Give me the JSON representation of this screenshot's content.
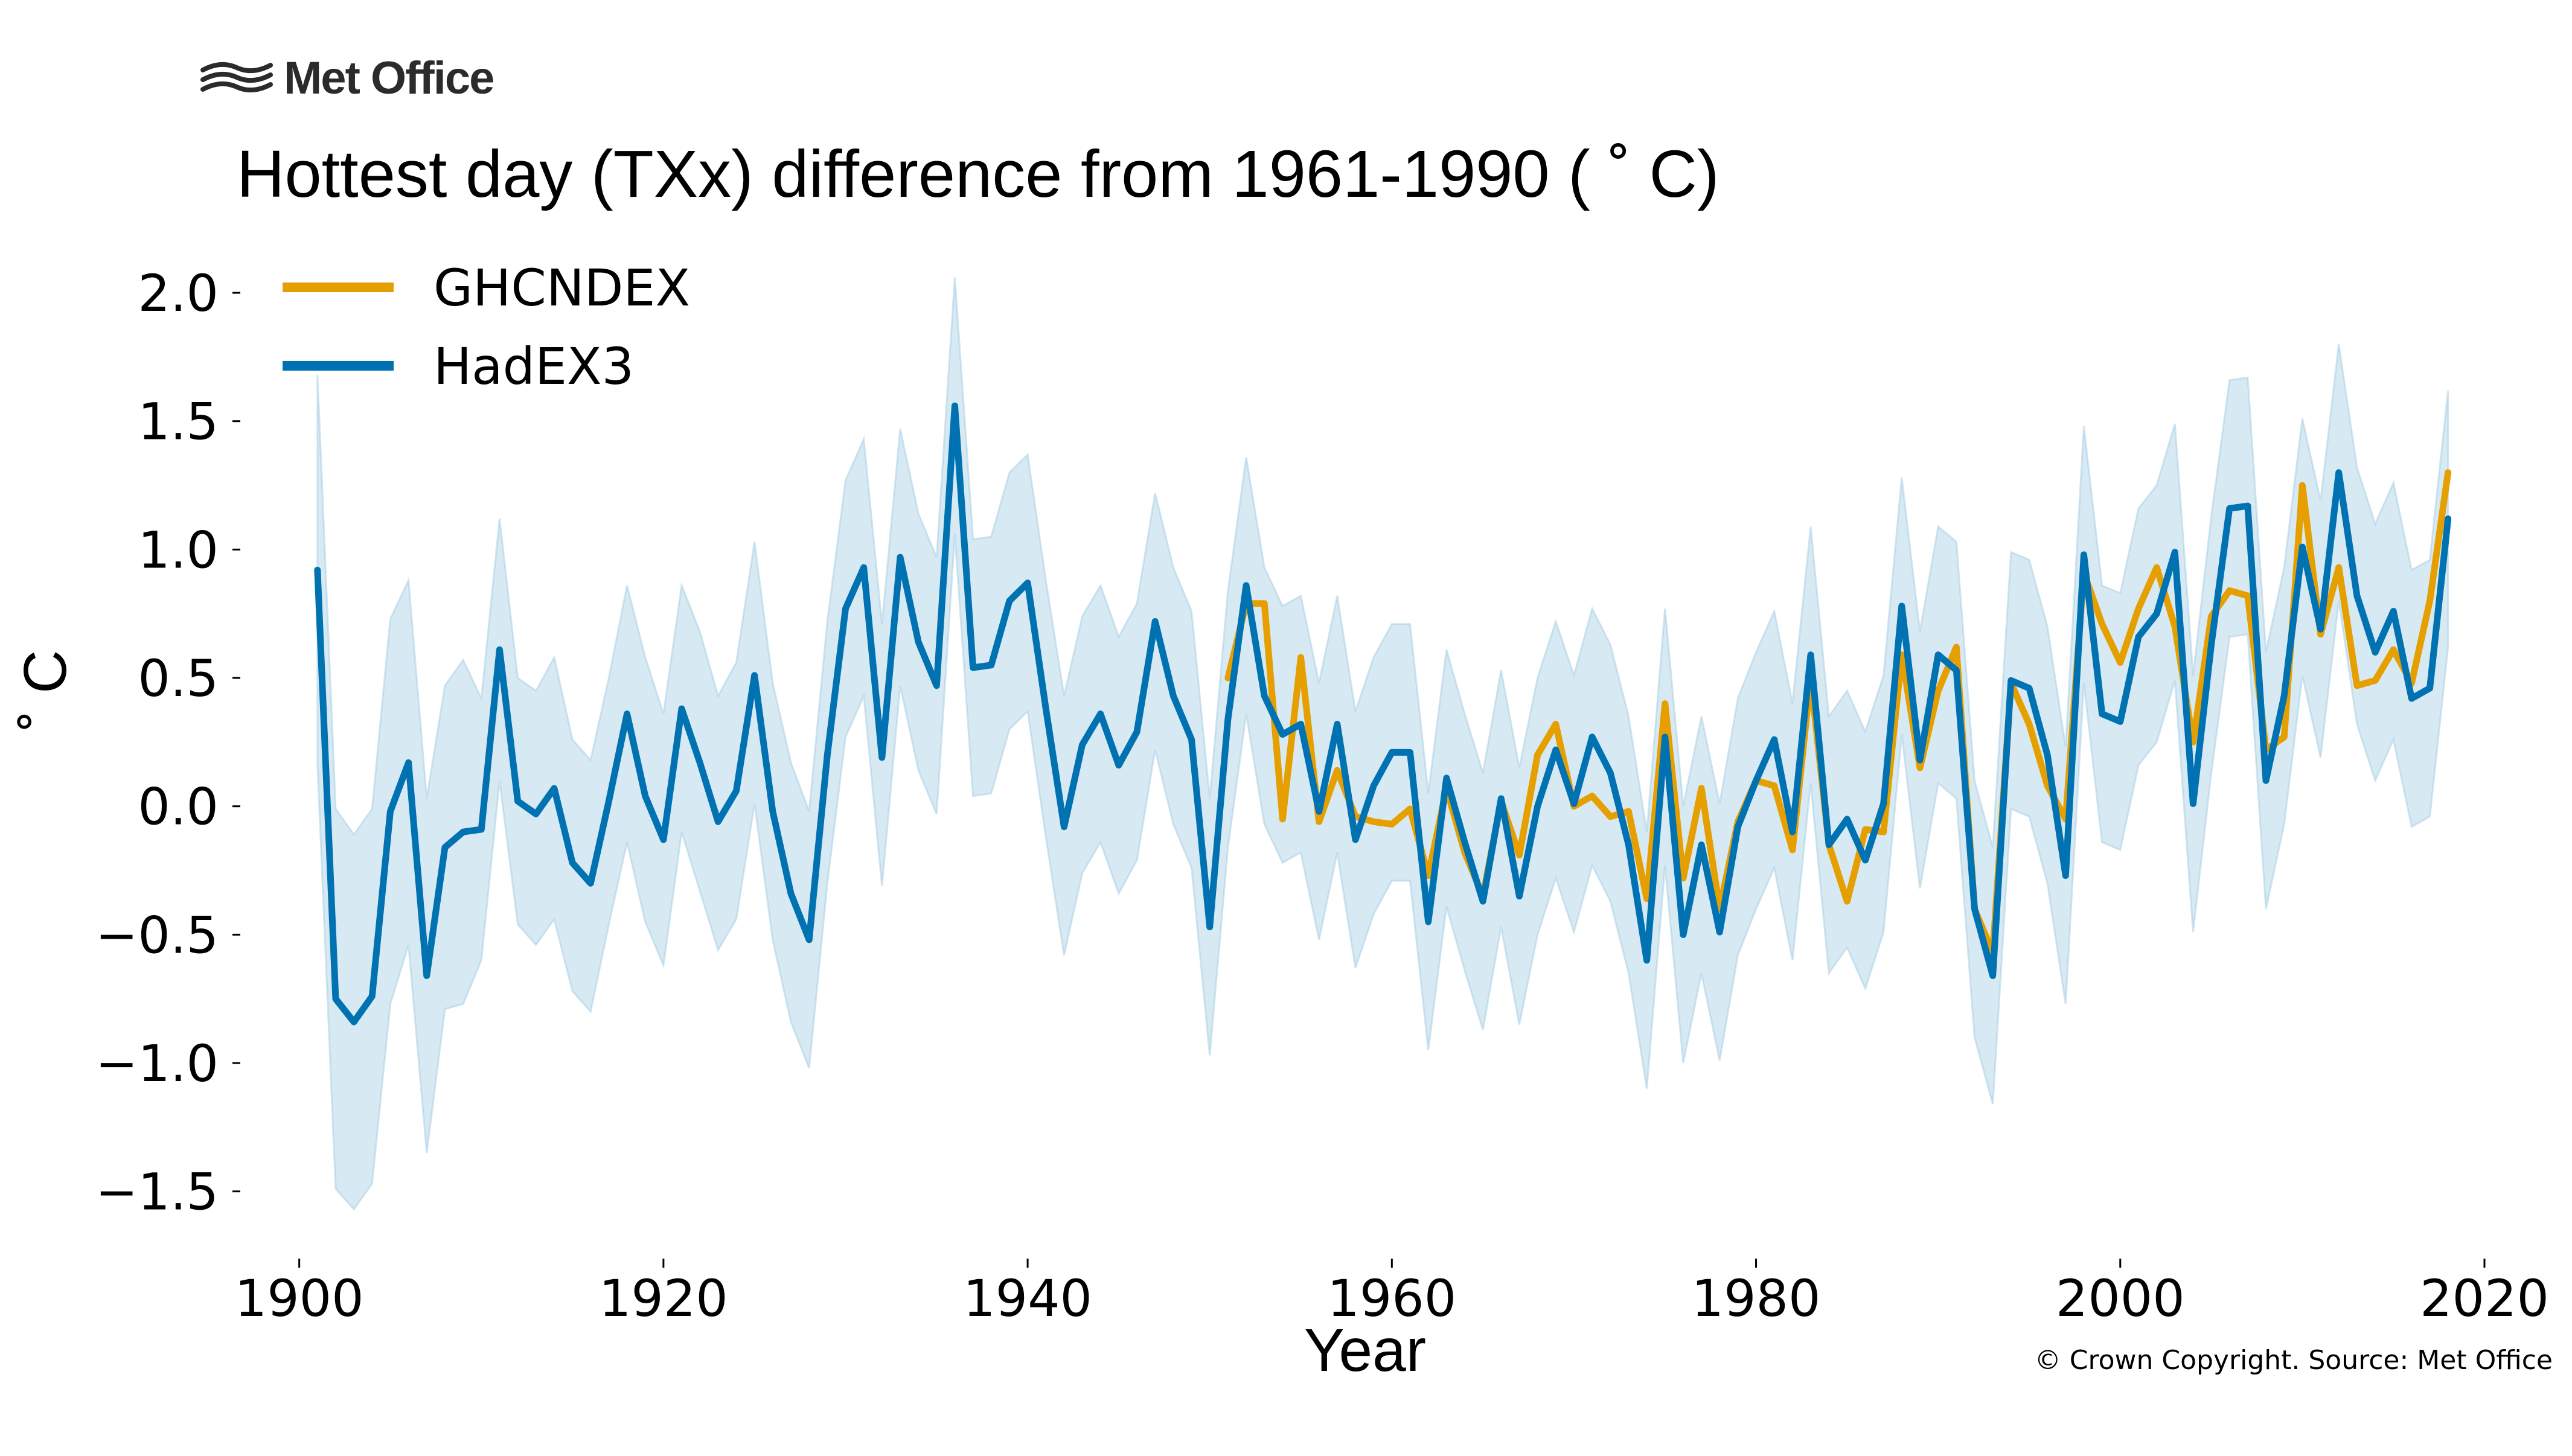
{
  "logo": {
    "text": "Met Office",
    "icon": "met-office-wave-icon"
  },
  "copyright": "© Crown Copyright. Source: Met Office",
  "chart_data": {
    "type": "line",
    "title": "Hottest day (TXx) difference from 1961-1990 ( ˚ C)",
    "xlabel": "Year",
    "ylabel": "˚ C",
    "xlim": [
      1896,
      2020
    ],
    "ylim": [
      -1.75,
      2.2
    ],
    "xticks": [
      1900,
      1920,
      1940,
      1960,
      1980,
      2000,
      2020
    ],
    "xtick_labels": [
      "1900",
      "1920",
      "1940",
      "1960",
      "1980",
      "2000",
      "2020"
    ],
    "yticks": [
      2.0,
      1.5,
      1.0,
      0.5,
      0.0,
      -0.5,
      -1.0,
      -1.5
    ],
    "ytick_labels": [
      "2.0",
      "1.5",
      "1.0",
      "0.5",
      "0.0",
      "−0.5",
      "−1.0",
      "−1.5"
    ],
    "grid": false,
    "legend_position": "top-left",
    "series": [
      {
        "name": "GHCNDEX",
        "color": "#e69f00",
        "x": [
          1951,
          1952,
          1953,
          1954,
          1955,
          1956,
          1957,
          1958,
          1959,
          1960,
          1961,
          1962,
          1963,
          1964,
          1965,
          1966,
          1967,
          1968,
          1969,
          1970,
          1971,
          1972,
          1973,
          1974,
          1975,
          1976,
          1977,
          1978,
          1979,
          1980,
          1981,
          1982,
          1983,
          1984,
          1985,
          1986,
          1987,
          1988,
          1989,
          1990,
          1991,
          1992,
          1993,
          1994,
          1995,
          1996,
          1997,
          1998,
          1999,
          2000,
          2001,
          2002,
          2003,
          2004,
          2005,
          2006,
          2007,
          2008,
          2009,
          2010,
          2011,
          2012,
          2013,
          2014,
          2015,
          2016,
          2017,
          2018
        ],
        "values": [
          0.5,
          0.79,
          0.79,
          -0.05,
          0.58,
          -0.06,
          0.14,
          -0.04,
          -0.06,
          -0.07,
          -0.01,
          -0.27,
          0.07,
          -0.18,
          -0.35,
          0.02,
          -0.19,
          0.2,
          0.32,
          0.0,
          0.04,
          -0.04,
          -0.02,
          -0.36,
          0.4,
          -0.28,
          0.07,
          -0.4,
          -0.06,
          0.1,
          0.08,
          -0.17,
          0.5,
          -0.15,
          -0.37,
          -0.09,
          -0.1,
          0.59,
          0.15,
          0.45,
          0.62,
          -0.4,
          -0.57,
          0.48,
          0.32,
          0.08,
          -0.05,
          0.91,
          0.71,
          0.56,
          0.77,
          0.93,
          0.7,
          0.25,
          0.74,
          0.84,
          0.82,
          0.22,
          0.27,
          1.25,
          0.67,
          0.93,
          0.47,
          0.49,
          0.61,
          0.48,
          0.8,
          1.3
        ]
      },
      {
        "name": "HadEX3",
        "color": "#0072b2",
        "band_color": "#a6cee3",
        "x": [
          1901,
          1902,
          1903,
          1904,
          1905,
          1906,
          1907,
          1908,
          1909,
          1910,
          1911,
          1912,
          1913,
          1914,
          1915,
          1916,
          1917,
          1918,
          1919,
          1920,
          1921,
          1922,
          1923,
          1924,
          1925,
          1926,
          1927,
          1928,
          1929,
          1930,
          1931,
          1932,
          1933,
          1934,
          1935,
          1936,
          1937,
          1938,
          1939,
          1940,
          1941,
          1942,
          1943,
          1944,
          1945,
          1946,
          1947,
          1948,
          1949,
          1950,
          1951,
          1952,
          1953,
          1954,
          1955,
          1956,
          1957,
          1958,
          1959,
          1960,
          1961,
          1962,
          1963,
          1964,
          1965,
          1966,
          1967,
          1968,
          1969,
          1970,
          1971,
          1972,
          1973,
          1974,
          1975,
          1976,
          1977,
          1978,
          1979,
          1980,
          1981,
          1982,
          1983,
          1984,
          1985,
          1986,
          1987,
          1988,
          1989,
          1990,
          1991,
          1992,
          1993,
          1994,
          1995,
          1996,
          1997,
          1998,
          1999,
          2000,
          2001,
          2002,
          2003,
          2004,
          2005,
          2006,
          2007,
          2008,
          2009,
          2010,
          2011,
          2012,
          2013,
          2014,
          2015,
          2016,
          2017,
          2018
        ],
        "values": [
          0.92,
          -0.75,
          -0.84,
          -0.74,
          -0.02,
          0.17,
          -0.66,
          -0.16,
          -0.1,
          -0.09,
          0.61,
          0.02,
          -0.03,
          0.07,
          -0.22,
          -0.3,
          0.02,
          0.36,
          0.04,
          -0.13,
          0.38,
          0.17,
          -0.06,
          0.06,
          0.51,
          -0.02,
          -0.34,
          -0.52,
          0.2,
          0.77,
          0.93,
          0.19,
          0.97,
          0.64,
          0.47,
          1.56,
          0.54,
          0.55,
          0.8,
          0.87,
          0.38,
          -0.08,
          0.24,
          0.36,
          0.16,
          0.29,
          0.72,
          0.43,
          0.26,
          -0.47,
          0.34,
          0.86,
          0.43,
          0.28,
          0.32,
          -0.02,
          0.32,
          -0.13,
          0.08,
          0.21,
          0.21,
          -0.45,
          0.11,
          -0.14,
          -0.37,
          0.03,
          -0.35,
          0.0,
          0.22,
          0.01,
          0.27,
          0.13,
          -0.15,
          -0.6,
          0.27,
          -0.5,
          -0.15,
          -0.49,
          -0.08,
          0.1,
          0.26,
          -0.1,
          0.59,
          -0.15,
          -0.05,
          -0.21,
          0.01,
          0.78,
          0.18,
          0.59,
          0.53,
          -0.4,
          -0.66,
          0.49,
          0.46,
          0.2,
          -0.27,
          0.98,
          0.36,
          0.33,
          0.66,
          0.75,
          0.99,
          0.01,
          0.63,
          1.16,
          1.17,
          0.1,
          0.43,
          1.01,
          0.69,
          1.3,
          0.82,
          0.6,
          0.76,
          0.42,
          0.46,
          1.12
        ],
        "upper": [
          1.68,
          -0.01,
          -0.11,
          -0.01,
          0.73,
          0.88,
          0.03,
          0.47,
          0.57,
          0.42,
          1.12,
          0.5,
          0.45,
          0.58,
          0.26,
          0.18,
          0.5,
          0.86,
          0.58,
          0.36,
          0.86,
          0.68,
          0.43,
          0.56,
          1.03,
          0.48,
          0.17,
          -0.02,
          0.72,
          1.27,
          1.43,
          0.71,
          1.47,
          1.14,
          0.97,
          2.06,
          1.04,
          1.05,
          1.3,
          1.37,
          0.88,
          0.43,
          0.74,
          0.86,
          0.66,
          0.79,
          1.22,
          0.93,
          0.76,
          0.03,
          0.84,
          1.36,
          0.93,
          0.78,
          0.82,
          0.48,
          0.82,
          0.37,
          0.58,
          0.71,
          0.71,
          0.05,
          0.61,
          0.36,
          0.13,
          0.53,
          0.15,
          0.5,
          0.72,
          0.51,
          0.77,
          0.63,
          0.35,
          -0.1,
          0.77,
          0.0,
          0.35,
          0.01,
          0.42,
          0.6,
          0.76,
          0.4,
          1.09,
          0.35,
          0.45,
          0.29,
          0.51,
          1.28,
          0.68,
          1.09,
          1.03,
          0.1,
          -0.16,
          0.99,
          0.96,
          0.7,
          0.23,
          1.48,
          0.86,
          0.83,
          1.16,
          1.25,
          1.49,
          0.51,
          1.13,
          1.66,
          1.67,
          0.6,
          0.93,
          1.51,
          1.19,
          1.8,
          1.32,
          1.1,
          1.26,
          0.92,
          0.96,
          1.62
        ],
        "lower": [
          0.16,
          -1.49,
          -1.57,
          -1.47,
          -0.77,
          -0.54,
          -1.35,
          -0.79,
          -0.77,
          -0.6,
          0.1,
          -0.46,
          -0.54,
          -0.44,
          -0.72,
          -0.8,
          -0.46,
          -0.14,
          -0.45,
          -0.62,
          -0.1,
          -0.33,
          -0.56,
          -0.44,
          0.01,
          -0.52,
          -0.84,
          -1.02,
          -0.3,
          0.27,
          0.43,
          -0.31,
          0.47,
          0.14,
          -0.03,
          1.06,
          0.04,
          0.05,
          0.3,
          0.37,
          -0.12,
          -0.58,
          -0.26,
          -0.14,
          -0.34,
          -0.21,
          0.22,
          -0.07,
          -0.24,
          -0.97,
          -0.16,
          0.36,
          -0.07,
          -0.22,
          -0.18,
          -0.52,
          -0.18,
          -0.63,
          -0.42,
          -0.29,
          -0.29,
          -0.95,
          -0.39,
          -0.64,
          -0.87,
          -0.47,
          -0.85,
          -0.5,
          -0.28,
          -0.49,
          -0.23,
          -0.37,
          -0.65,
          -1.1,
          -0.23,
          -1.0,
          -0.65,
          -0.99,
          -0.58,
          -0.4,
          -0.24,
          -0.6,
          0.09,
          -0.65,
          -0.55,
          -0.71,
          -0.49,
          0.28,
          -0.32,
          0.09,
          0.03,
          -0.9,
          -1.16,
          -0.01,
          -0.04,
          -0.3,
          -0.77,
          0.48,
          -0.14,
          -0.17,
          0.16,
          0.25,
          0.49,
          -0.49,
          0.13,
          0.66,
          0.67,
          -0.4,
          -0.07,
          0.51,
          0.19,
          0.8,
          0.32,
          0.1,
          0.26,
          -0.08,
          -0.04,
          0.62
        ]
      }
    ]
  }
}
